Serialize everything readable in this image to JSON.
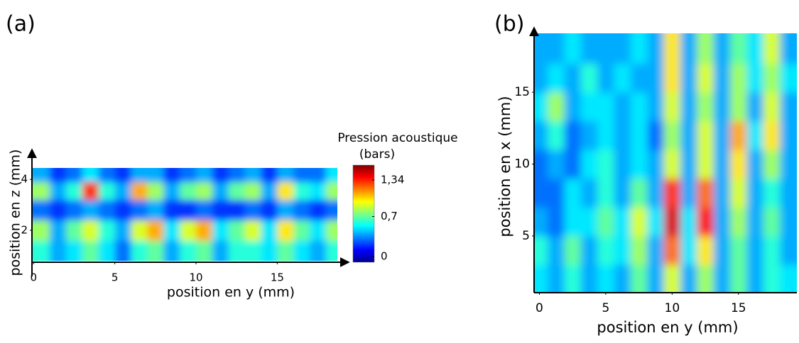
{
  "chart_data": [
    {
      "type": "heatmap",
      "panel_label": "(a)",
      "x_label": "position en y (mm)",
      "y_label": "position en z (mm)",
      "colorbar_title": "Pression acoustique",
      "colorbar_unit": "(bars)",
      "x": [
        0.5,
        1.5,
        2.5,
        3.5,
        4.5,
        5.5,
        6.5,
        7.5,
        8.5,
        9.5,
        10.5,
        11.5,
        12.5,
        13.5,
        14.5,
        15.5,
        16.5,
        17.5,
        18.5
      ],
      "y": [
        1.2,
        2.0,
        2.8,
        3.6,
        4.2
      ],
      "z": [
        [
          0.6,
          0.4,
          0.5,
          0.7,
          0.5,
          0.3,
          0.6,
          0.7,
          0.4,
          0.6,
          0.7,
          0.4,
          0.6,
          0.6,
          0.5,
          0.7,
          0.5,
          0.4,
          0.6
        ],
        [
          0.8,
          0.4,
          0.7,
          0.9,
          0.6,
          0.4,
          0.9,
          1.1,
          0.5,
          0.9,
          1.1,
          0.5,
          0.7,
          0.9,
          0.5,
          1.0,
          0.7,
          0.5,
          0.8
        ],
        [
          0.3,
          0.2,
          0.3,
          0.4,
          0.3,
          0.2,
          0.3,
          0.4,
          0.2,
          0.2,
          0.3,
          0.2,
          0.2,
          0.3,
          0.2,
          0.4,
          0.3,
          0.2,
          0.3
        ],
        [
          0.8,
          0.4,
          0.6,
          1.3,
          0.6,
          0.4,
          1.1,
          0.8,
          0.4,
          0.7,
          0.8,
          0.4,
          0.7,
          0.8,
          0.4,
          1.0,
          0.6,
          0.5,
          0.8
        ],
        [
          0.4,
          0.2,
          0.3,
          0.5,
          0.3,
          0.2,
          0.4,
          0.4,
          0.2,
          0.3,
          0.4,
          0.2,
          0.3,
          0.4,
          0.2,
          0.4,
          0.3,
          0.3,
          0.5
        ]
      ],
      "xlim": [
        -0.1,
        18.7
      ],
      "ylim": [
        0.8,
        4.45
      ],
      "xticks": [
        0,
        5,
        10,
        15
      ],
      "yticks": [
        2,
        4
      ],
      "clim": [
        -0.1,
        1.6
      ],
      "cticks": [
        {
          "value": 1.34,
          "label": "1,34"
        },
        {
          "value": 0.7,
          "label": "0,7"
        },
        0
      ]
    },
    {
      "type": "heatmap",
      "panel_label": "(b)",
      "x_label": "position en y (mm)",
      "y_label": "position en x (mm)",
      "x": [
        0,
        1.25,
        2.5,
        3.75,
        5,
        6.25,
        7.5,
        8.75,
        10,
        11.25,
        12.5,
        13.75,
        15,
        16.25,
        17.5,
        18.75
      ],
      "y": [
        2,
        4,
        6,
        8,
        10,
        12,
        14,
        16,
        18
      ],
      "z": [
        [
          0.5,
          0.4,
          0.6,
          0.4,
          0.5,
          0.4,
          0.7,
          0.4,
          0.9,
          0.4,
          0.8,
          0.4,
          0.7,
          0.4,
          0.6,
          0.5
        ],
        [
          0.6,
          0.4,
          0.7,
          0.4,
          0.6,
          0.5,
          0.8,
          0.4,
          1.2,
          0.5,
          1.0,
          0.4,
          0.7,
          0.4,
          0.6,
          0.4
        ],
        [
          0.4,
          0.3,
          0.5,
          0.5,
          0.7,
          0.5,
          0.9,
          0.5,
          1.45,
          0.5,
          1.35,
          0.4,
          0.8,
          0.4,
          0.7,
          0.4
        ],
        [
          0.3,
          0.3,
          0.5,
          0.4,
          0.6,
          0.4,
          0.7,
          0.4,
          1.3,
          0.4,
          1.2,
          0.4,
          0.9,
          0.4,
          0.6,
          0.4
        ],
        [
          0.3,
          0.4,
          0.3,
          0.5,
          0.6,
          0.4,
          0.5,
          0.4,
          0.9,
          0.4,
          0.9,
          0.4,
          1.0,
          0.4,
          0.8,
          0.4
        ],
        [
          0.4,
          0.6,
          0.3,
          0.4,
          0.5,
          0.4,
          0.5,
          0.3,
          0.8,
          0.4,
          0.9,
          0.4,
          1.1,
          0.5,
          1.0,
          0.4
        ],
        [
          0.5,
          0.8,
          0.4,
          0.5,
          0.5,
          0.4,
          0.5,
          0.4,
          0.9,
          0.4,
          0.8,
          0.4,
          0.8,
          0.4,
          0.9,
          0.4
        ],
        [
          0.4,
          0.5,
          0.4,
          0.6,
          0.4,
          0.5,
          0.4,
          0.4,
          1.0,
          0.4,
          0.9,
          0.4,
          0.8,
          0.5,
          0.8,
          0.5
        ],
        [
          0.4,
          0.4,
          0.5,
          0.4,
          0.4,
          0.4,
          0.5,
          0.4,
          1.0,
          0.4,
          0.8,
          0.4,
          0.7,
          0.5,
          0.9,
          0.4
        ]
      ],
      "xlim": [
        -0.4,
        19.4
      ],
      "ylim": [
        1.1,
        19.1
      ],
      "xticks": [
        0,
        5,
        10,
        15
      ],
      "yticks": [
        5,
        10,
        15
      ],
      "clim": [
        -0.1,
        1.6
      ]
    }
  ]
}
